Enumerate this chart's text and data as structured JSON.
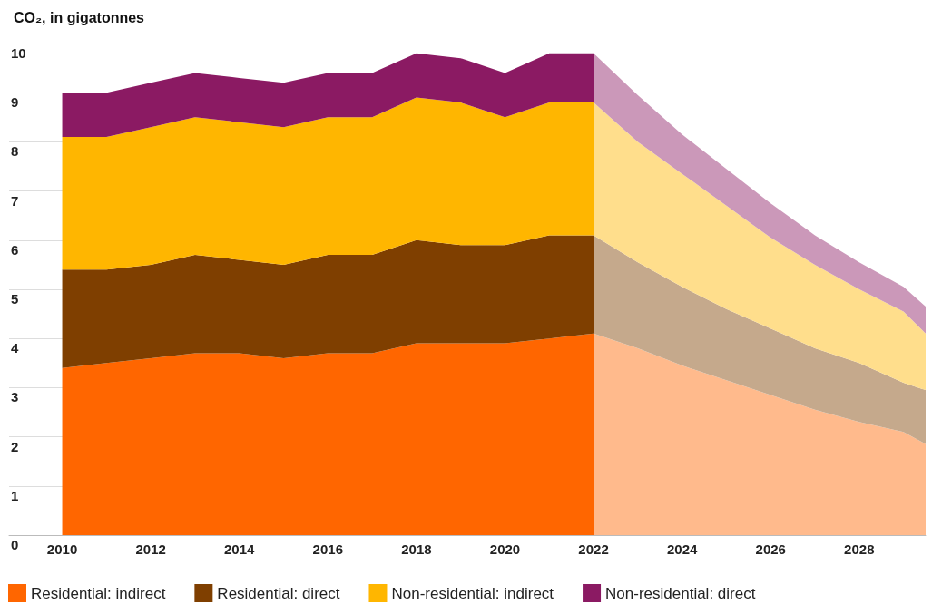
{
  "chart_data": {
    "type": "area",
    "title": "CO₂, in gigatonnes",
    "stacked": true,
    "xlim": [
      2008.8,
      2029.5
    ],
    "xticks": [
      2010,
      2012,
      2014,
      2016,
      2018,
      2020,
      2022,
      2024,
      2026,
      2028
    ],
    "ylim": [
      0,
      10
    ],
    "yticks": [
      0,
      1,
      2,
      3,
      4,
      5,
      6,
      7,
      8,
      9,
      10
    ],
    "grid": "y",
    "legend": "bottom",
    "x": [
      2010,
      2011,
      2012,
      2013,
      2014,
      2015,
      2016,
      2017,
      2018,
      2019,
      2020,
      2021,
      2022,
      2023,
      2024,
      2025,
      2026,
      2027,
      2028,
      2029,
      2029.5
    ],
    "bands": [
      {
        "axis": "x",
        "from": 2022,
        "to": 2029.5,
        "color": "#ffffff"
      }
    ],
    "series": [
      {
        "name": "Residential: indirect",
        "color": "#ff6600",
        "values": [
          3.4,
          3.5,
          3.6,
          3.7,
          3.7,
          3.6,
          3.7,
          3.7,
          3.9,
          3.9,
          3.9,
          4.0,
          4.1,
          3.8,
          3.45,
          3.15,
          2.85,
          2.55,
          2.3,
          2.1,
          1.85
        ]
      },
      {
        "name": "Residential: direct",
        "color": "#7f3f00",
        "values": [
          2.0,
          1.9,
          1.9,
          2.0,
          1.9,
          1.9,
          2.0,
          2.0,
          2.1,
          2.0,
          2.0,
          2.1,
          2.0,
          1.75,
          1.6,
          1.45,
          1.35,
          1.25,
          1.2,
          1.0,
          1.1
        ]
      },
      {
        "name": "Non-residential: indirect",
        "color": "#ffb600",
        "values": [
          2.7,
          2.7,
          2.8,
          2.8,
          2.8,
          2.8,
          2.8,
          2.8,
          2.9,
          2.9,
          2.6,
          2.7,
          2.7,
          2.45,
          2.3,
          2.1,
          1.85,
          1.7,
          1.5,
          1.45,
          1.15
        ]
      },
      {
        "name": "Non-residential: direct",
        "color": "#8b1a63",
        "values": [
          0.9,
          0.9,
          0.9,
          0.9,
          0.9,
          0.9,
          0.9,
          0.9,
          0.9,
          0.9,
          0.9,
          1.0,
          1.0,
          0.95,
          0.8,
          0.75,
          0.7,
          0.6,
          0.55,
          0.5,
          0.55
        ]
      }
    ]
  }
}
